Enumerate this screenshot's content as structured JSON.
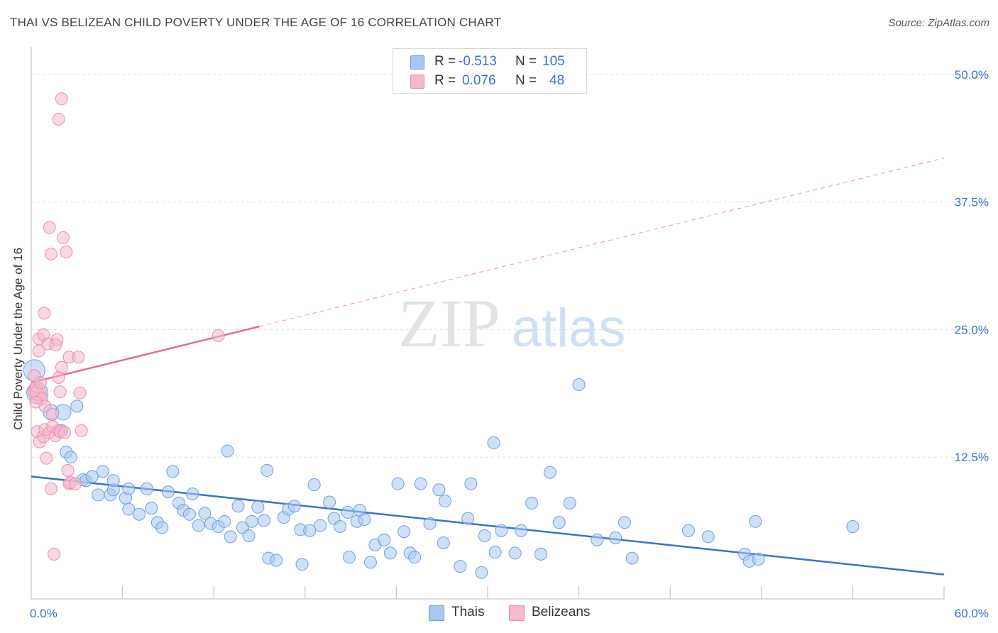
{
  "title": "THAI VS BELIZEAN CHILD POVERTY UNDER THE AGE OF 16 CORRELATION CHART",
  "source": "Source: ZipAtlas.com",
  "watermark": {
    "zip": "ZIP",
    "atlas": "atlas"
  },
  "legend_stats": [
    {
      "r_label": "R =",
      "r_value": "-0.513",
      "n_label": "N =",
      "n_value": "105",
      "color": "#a9c8f0"
    },
    {
      "r_label": "R =",
      "r_value": "0.076",
      "n_label": "N =",
      "n_value": "48",
      "color": "#f6b8cc"
    }
  ],
  "bottom_legend": [
    {
      "label": "Thais",
      "color": "#a9c8f0"
    },
    {
      "label": "Belizeans",
      "color": "#f6b8cc"
    }
  ],
  "chart_data": {
    "type": "scatter",
    "xlabel": "",
    "ylabel": "Child Poverty Under the Age of 16",
    "xlim": [
      0,
      60
    ],
    "ylim": [
      0,
      52
    ],
    "x_tick_labels": [
      {
        "value": 0,
        "label": "0.0%"
      },
      {
        "value": 60,
        "label": "60.0%"
      }
    ],
    "y_tick_labels": [
      {
        "value": 12.5,
        "label": "12.5%"
      },
      {
        "value": 25,
        "label": "25.0%"
      },
      {
        "value": 37.5,
        "label": "37.5%"
      },
      {
        "value": 50,
        "label": "50.0%"
      }
    ],
    "x_minor_ticks": [
      0,
      6,
      12,
      18,
      24,
      30,
      36,
      42,
      48,
      54,
      60
    ],
    "grid": "horizontal dashed",
    "series": [
      {
        "name": "Thais",
        "color": "#a9c8f0",
        "stroke": "#6d9fe0",
        "trend": {
          "x": [
            0,
            60
          ],
          "y": [
            10.6,
            1.0
          ],
          "color": "#3a73c9"
        },
        "points": [
          [
            0.2,
            21.0,
            3
          ],
          [
            0.4,
            18.8,
            3
          ],
          [
            1.3,
            16.9,
            2
          ],
          [
            2.1,
            16.9,
            2
          ],
          [
            3.0,
            17.5,
            1
          ],
          [
            2.0,
            15.1,
            1
          ],
          [
            2.3,
            13.0,
            1
          ],
          [
            2.6,
            12.5,
            1
          ],
          [
            3.4,
            10.3,
            1
          ],
          [
            3.6,
            10.2,
            1
          ],
          [
            4.0,
            10.6,
            1
          ],
          [
            4.7,
            11.1,
            1
          ],
          [
            4.4,
            8.8,
            1
          ],
          [
            5.2,
            8.8,
            1
          ],
          [
            5.4,
            9.3,
            1
          ],
          [
            5.4,
            10.2,
            1
          ],
          [
            6.2,
            8.5,
            1
          ],
          [
            6.4,
            7.4,
            1
          ],
          [
            6.4,
            9.4,
            1
          ],
          [
            7.1,
            6.9,
            1
          ],
          [
            7.6,
            9.4,
            1
          ],
          [
            7.9,
            7.5,
            1
          ],
          [
            8.3,
            6.1,
            1
          ],
          [
            8.6,
            5.6,
            1
          ],
          [
            9.0,
            9.1,
            1
          ],
          [
            9.3,
            11.1,
            1
          ],
          [
            9.7,
            8.0,
            1
          ],
          [
            10.0,
            7.3,
            1
          ],
          [
            10.4,
            6.9,
            1
          ],
          [
            10.6,
            8.9,
            1
          ],
          [
            11.0,
            5.8,
            1
          ],
          [
            11.4,
            7.0,
            1
          ],
          [
            11.8,
            6.0,
            1
          ],
          [
            12.3,
            5.7,
            1
          ],
          [
            12.7,
            6.2,
            1
          ],
          [
            12.9,
            13.1,
            1
          ],
          [
            13.1,
            4.7,
            1
          ],
          [
            13.6,
            7.7,
            1
          ],
          [
            13.9,
            5.6,
            1
          ],
          [
            14.3,
            4.8,
            1
          ],
          [
            14.5,
            6.2,
            1
          ],
          [
            14.9,
            7.6,
            1
          ],
          [
            15.3,
            6.3,
            1
          ],
          [
            15.5,
            11.2,
            1
          ],
          [
            15.6,
            2.6,
            1
          ],
          [
            16.1,
            2.4,
            1
          ],
          [
            16.6,
            6.6,
            1
          ],
          [
            16.9,
            7.4,
            1
          ],
          [
            17.3,
            7.7,
            1
          ],
          [
            17.7,
            5.4,
            1
          ],
          [
            17.8,
            2.0,
            1
          ],
          [
            18.3,
            5.3,
            1
          ],
          [
            18.6,
            9.8,
            1
          ],
          [
            19.0,
            5.8,
            1
          ],
          [
            19.6,
            8.1,
            1
          ],
          [
            19.9,
            6.5,
            1
          ],
          [
            20.3,
            5.7,
            1
          ],
          [
            20.8,
            7.1,
            1
          ],
          [
            20.9,
            2.7,
            1
          ],
          [
            21.4,
            6.2,
            1
          ],
          [
            21.6,
            7.3,
            1
          ],
          [
            21.9,
            6.4,
            1
          ],
          [
            22.3,
            2.2,
            1
          ],
          [
            22.6,
            3.9,
            1
          ],
          [
            23.2,
            4.4,
            1
          ],
          [
            23.6,
            3.1,
            1
          ],
          [
            24.1,
            9.9,
            1
          ],
          [
            24.5,
            5.2,
            1
          ],
          [
            24.9,
            3.1,
            1
          ],
          [
            25.2,
            2.7,
            1
          ],
          [
            25.6,
            9.9,
            1
          ],
          [
            26.2,
            6.0,
            1
          ],
          [
            26.8,
            9.3,
            1
          ],
          [
            27.1,
            4.1,
            1
          ],
          [
            27.2,
            8.2,
            1
          ],
          [
            28.2,
            1.8,
            1
          ],
          [
            28.7,
            6.5,
            1
          ],
          [
            28.9,
            9.9,
            1
          ],
          [
            29.6,
            1.2,
            1
          ],
          [
            29.8,
            4.8,
            1
          ],
          [
            30.4,
            13.9,
            1
          ],
          [
            30.5,
            3.2,
            1
          ],
          [
            30.9,
            5.3,
            1
          ],
          [
            31.8,
            3.1,
            1
          ],
          [
            32.2,
            5.3,
            1
          ],
          [
            32.9,
            8.0,
            1
          ],
          [
            33.5,
            3.0,
            1
          ],
          [
            34.1,
            11.0,
            1
          ],
          [
            34.7,
            6.1,
            1
          ],
          [
            35.4,
            8.0,
            1
          ],
          [
            36.0,
            19.6,
            1
          ],
          [
            37.2,
            4.4,
            1
          ],
          [
            38.4,
            4.6,
            1
          ],
          [
            39.0,
            6.1,
            1
          ],
          [
            39.5,
            2.6,
            1
          ],
          [
            43.2,
            5.3,
            1
          ],
          [
            44.5,
            4.7,
            1
          ],
          [
            46.9,
            3.0,
            1
          ],
          [
            47.2,
            2.3,
            1
          ],
          [
            47.6,
            6.2,
            1
          ],
          [
            47.8,
            2.5,
            1
          ],
          [
            54.0,
            5.7,
            1
          ]
        ]
      },
      {
        "name": "Belizeans",
        "color": "#f6b8cc",
        "stroke": "#e88fae",
        "trend": {
          "x": [
            0,
            60
          ],
          "y": [
            19.8,
            41.8
          ],
          "solid_until": 15,
          "color": "#e06b93"
        },
        "points": [
          [
            0.2,
            20.5,
            1
          ],
          [
            0.25,
            19.2,
            1
          ],
          [
            0.3,
            18.9,
            2
          ],
          [
            0.35,
            19.4,
            1
          ],
          [
            0.4,
            15.0,
            1
          ],
          [
            0.45,
            18.8,
            2
          ],
          [
            0.5,
            22.9,
            1
          ],
          [
            0.5,
            24.1,
            1
          ],
          [
            0.55,
            14.0,
            1
          ],
          [
            0.6,
            19.8,
            1
          ],
          [
            0.7,
            18.2,
            1
          ],
          [
            0.8,
            14.5,
            1
          ],
          [
            0.8,
            24.5,
            1
          ],
          [
            0.85,
            26.6,
            1
          ],
          [
            0.9,
            15.2,
            1
          ],
          [
            0.9,
            17.5,
            1
          ],
          [
            1.0,
            12.4,
            1
          ],
          [
            1.1,
            23.6,
            1
          ],
          [
            1.2,
            35.0,
            1
          ],
          [
            1.2,
            14.9,
            1
          ],
          [
            1.3,
            32.4,
            1
          ],
          [
            1.3,
            9.4,
            1
          ],
          [
            1.4,
            16.7,
            1
          ],
          [
            1.4,
            15.5,
            1
          ],
          [
            1.5,
            3.0,
            1
          ],
          [
            1.6,
            14.6,
            1
          ],
          [
            1.7,
            24.0,
            1
          ],
          [
            1.6,
            23.5,
            1
          ],
          [
            1.8,
            15.1,
            1
          ],
          [
            1.8,
            45.6,
            1
          ],
          [
            1.8,
            20.3,
            1
          ],
          [
            1.9,
            18.9,
            1
          ],
          [
            1.9,
            15.0,
            1
          ],
          [
            2.0,
            47.6,
            1
          ],
          [
            2.0,
            21.3,
            1
          ],
          [
            2.1,
            34.0,
            1
          ],
          [
            2.2,
            14.9,
            1
          ],
          [
            2.3,
            32.6,
            1
          ],
          [
            2.4,
            11.2,
            1
          ],
          [
            2.5,
            9.9,
            1
          ],
          [
            2.5,
            22.3,
            1
          ],
          [
            2.6,
            10.0,
            1
          ],
          [
            2.9,
            9.9,
            1
          ],
          [
            3.1,
            22.3,
            1
          ],
          [
            3.2,
            18.8,
            1
          ],
          [
            3.3,
            15.1,
            1
          ],
          [
            12.3,
            24.4,
            1
          ],
          [
            0.3,
            17.9,
            1
          ]
        ]
      }
    ]
  }
}
